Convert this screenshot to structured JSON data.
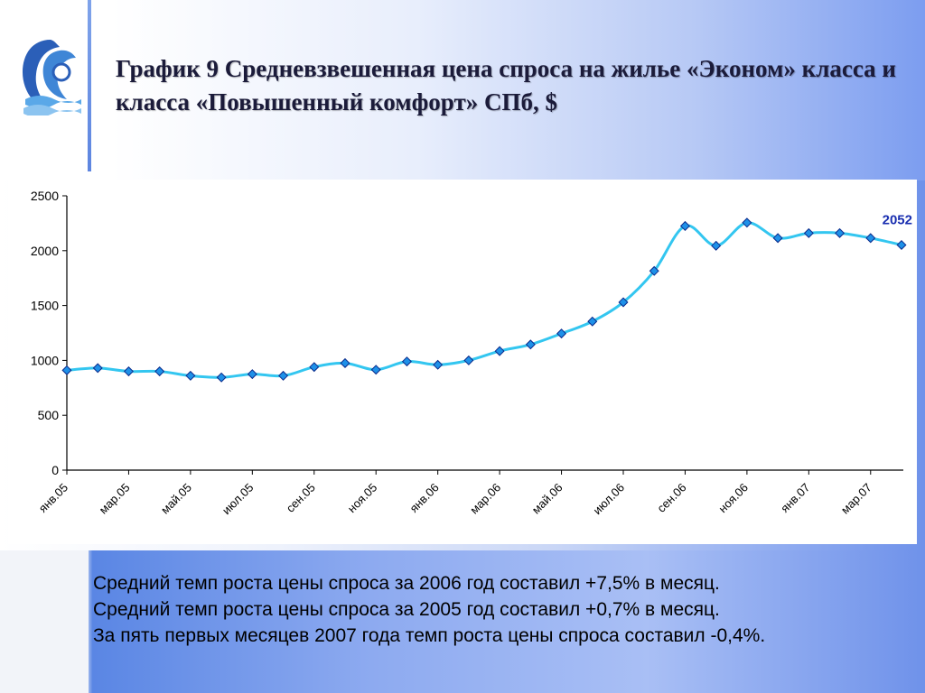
{
  "title": "График 9 Средневзвешенная цена спроса на жилье «Эконом» класса и класса «Повышенный комфорт» СПб, $",
  "notes": [
    "Средний темп роста цены спроса за 2006 год составил +7,5% в месяц.",
    "Средний темп роста цены спроса за 2005 год составил +0,7% в месяц.",
    "За пять первых месяцев 2007 года темп роста цены спроса составил -0,4%."
  ],
  "colors": {
    "line": "#33c6f0",
    "marker": "#1e90e8",
    "marker_stroke": "#0a2a8a",
    "callout": "#1a2fb0"
  },
  "chart_data": {
    "type": "line",
    "x": [
      "янв.05",
      "фев.05",
      "мар.05",
      "апр.05",
      "май.05",
      "июн.05",
      "июл.05",
      "авг.05",
      "сен.05",
      "окт.05",
      "ноя.05",
      "дек.05",
      "янв.06",
      "фев.06",
      "мар.06",
      "апр.06",
      "май.06",
      "июн.06",
      "июл.06",
      "авг.06",
      "сен.06",
      "окт.06",
      "ноя.06",
      "дек.06",
      "янв.07",
      "фев.07",
      "мар.07",
      "апр.07"
    ],
    "tick_labels": [
      "янв.05",
      "мар.05",
      "май.05",
      "июл.05",
      "сен.05",
      "ноя.05",
      "янв.06",
      "мар.06",
      "май.06",
      "июл.06",
      "сен.06",
      "ноя.06",
      "янв.07",
      "мар.07"
    ],
    "series": [
      {
        "values": [
          910,
          930,
          900,
          900,
          860,
          845,
          875,
          860,
          940,
          975,
          915,
          990,
          960,
          1000,
          1085,
          1145,
          1245,
          1355,
          1530,
          1815,
          2225,
          2045,
          2255,
          2115,
          2160,
          2160,
          2115,
          2052
        ]
      }
    ],
    "yticks": [
      0,
      500,
      1000,
      1500,
      2000,
      2500
    ],
    "ylim": [
      0,
      2500
    ],
    "annotation": "2052",
    "grid": false,
    "legend": "none"
  }
}
